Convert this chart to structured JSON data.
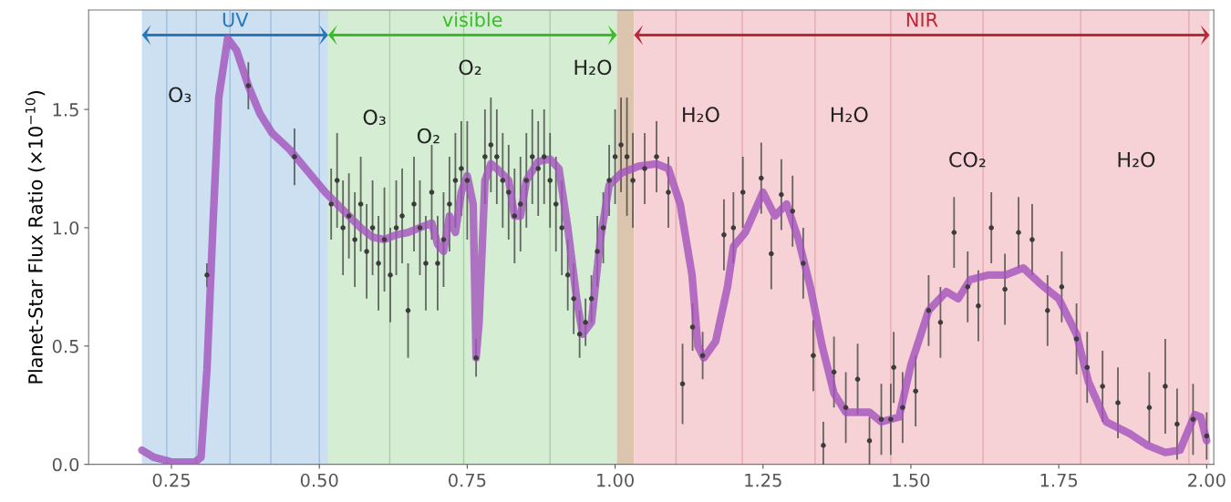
{
  "chart_data": {
    "type": "line",
    "ylabel": "Planet-Star Flux Ratio (×10$^{−10}$)",
    "xlim": [
      0.11,
      2.012
    ],
    "ylim": [
      0,
      1.92
    ],
    "xticks": [
      0.25,
      {
        "value": 0.5,
        "label": "0.50"
      },
      0.75,
      {
        "value": 1.0,
        "label": "1.00"
      },
      1.25,
      {
        "value": 1.5,
        "label": "1.50"
      },
      1.75,
      {
        "value": 2.0,
        "label": "2.00"
      }
    ],
    "yticks": [
      {
        "value": 0,
        "label": "0.0"
      },
      0.5,
      {
        "value": 1.0,
        "label": "1.0"
      },
      1.5
    ],
    "grid": false,
    "bands": [
      {
        "axis": "x",
        "from": 0.2,
        "to": 0.515,
        "label": "UV",
        "color": "#cadef0"
      },
      {
        "axis": "x",
        "from": 0.515,
        "to": 1.003,
        "label": "visible",
        "color": "#d3ecd0"
      },
      {
        "axis": "x",
        "from": 1.003,
        "to": 1.032,
        "label": null,
        "color": "#d9c2ab"
      },
      {
        "axis": "x",
        "from": 1.032,
        "to": 2.005,
        "label": "NIR",
        "color": "#f5cfd3"
      }
    ],
    "ref_lines": [
      {
        "axis": "x",
        "value": 0.242,
        "color": "#9fbcd8"
      },
      {
        "axis": "x",
        "value": 0.292,
        "color": "#9fbcd8"
      },
      {
        "axis": "x",
        "value": 0.349,
        "color": "#9fbcd8"
      },
      {
        "axis": "x",
        "value": 0.418,
        "color": "#9fbcd8"
      },
      {
        "axis": "x",
        "value": 0.5,
        "color": "#9fbcd8"
      },
      {
        "axis": "x",
        "value": 0.619,
        "color": "#a9cfa5"
      },
      {
        "axis": "x",
        "value": 0.744,
        "color": "#a9cfa5"
      },
      {
        "axis": "x",
        "value": 0.89,
        "color": "#a9cfa5"
      },
      {
        "axis": "x",
        "value": 1.103,
        "color": "#e9a9b0"
      },
      {
        "axis": "x",
        "value": 1.215,
        "color": "#e9a9b0"
      },
      {
        "axis": "x",
        "value": 1.338,
        "color": "#e9a9b0"
      },
      {
        "axis": "x",
        "value": 1.466,
        "color": "#e9a9b0"
      },
      {
        "axis": "x",
        "value": 1.622,
        "color": "#e9a9b0"
      },
      {
        "axis": "x",
        "value": 1.787,
        "color": "#e9a9b0"
      },
      {
        "axis": "x",
        "value": 1.97,
        "color": "#e9a9b0"
      }
    ],
    "annotations": [
      "O₃",
      "O₃",
      "O₂",
      "O₂",
      "H₂O",
      "H₂O",
      "H₂O",
      "CO₂",
      "H₂O"
    ],
    "series": [
      {
        "color": "#a352bd",
        "x": [
          0.2,
          0.22,
          0.25,
          0.29,
          0.3,
          0.31,
          0.32,
          0.33,
          0.345,
          0.36,
          0.38,
          0.4,
          0.42,
          0.45,
          0.48,
          0.51,
          0.53,
          0.55,
          0.57,
          0.59,
          0.61,
          0.63,
          0.65,
          0.67,
          0.69,
          0.7,
          0.71,
          0.72,
          0.73,
          0.74,
          0.75,
          0.76,
          0.765,
          0.77,
          0.78,
          0.79,
          0.8,
          0.82,
          0.83,
          0.84,
          0.85,
          0.87,
          0.89,
          0.905,
          0.92,
          0.935,
          0.945,
          0.96,
          0.975,
          0.99,
          1.01,
          1.04,
          1.07,
          1.09,
          1.11,
          1.13,
          1.14,
          1.15,
          1.17,
          1.19,
          1.2,
          1.22,
          1.25,
          1.27,
          1.29,
          1.31,
          1.33,
          1.35,
          1.37,
          1.39,
          1.43,
          1.45,
          1.48,
          1.5,
          1.53,
          1.56,
          1.58,
          1.6,
          1.63,
          1.66,
          1.69,
          1.72,
          1.75,
          1.78,
          1.8,
          1.83,
          1.87,
          1.9,
          1.93,
          1.955,
          1.97,
          1.98,
          1.99,
          2.0
        ],
        "values": [
          0.06,
          0.03,
          0.01,
          0.01,
          0.03,
          0.4,
          1.0,
          1.55,
          1.8,
          1.75,
          1.6,
          1.48,
          1.4,
          1.33,
          1.24,
          1.15,
          1.1,
          1.05,
          1.0,
          0.96,
          0.95,
          0.97,
          0.98,
          1.0,
          1.02,
          0.93,
          0.9,
          1.05,
          0.98,
          1.15,
          1.22,
          1.1,
          0.45,
          0.6,
          1.2,
          1.27,
          1.25,
          1.2,
          1.05,
          1.05,
          1.2,
          1.28,
          1.29,
          1.25,
          1.0,
          0.7,
          0.55,
          0.6,
          0.95,
          1.18,
          1.23,
          1.26,
          1.27,
          1.25,
          1.1,
          0.8,
          0.5,
          0.45,
          0.52,
          0.75,
          0.92,
          0.98,
          1.15,
          1.05,
          1.1,
          0.95,
          0.75,
          0.5,
          0.3,
          0.22,
          0.22,
          0.18,
          0.2,
          0.42,
          0.65,
          0.73,
          0.7,
          0.78,
          0.8,
          0.8,
          0.83,
          0.76,
          0.7,
          0.55,
          0.35,
          0.18,
          0.13,
          0.08,
          0.05,
          0.06,
          0.15,
          0.21,
          0.2,
          0.1
        ]
      },
      {
        "type": "scatter",
        "color": "#3b3b3b",
        "marker": "circle",
        "x": [
          0.31,
          0.38,
          0.458,
          0.52,
          0.53,
          0.54,
          0.55,
          0.56,
          0.57,
          0.58,
          0.59,
          0.6,
          0.61,
          0.62,
          0.63,
          0.64,
          0.65,
          0.66,
          0.67,
          0.68,
          0.69,
          0.7,
          0.71,
          0.72,
          0.73,
          0.74,
          0.75,
          0.765,
          0.78,
          0.79,
          0.8,
          0.81,
          0.82,
          0.83,
          0.84,
          0.85,
          0.86,
          0.87,
          0.88,
          0.89,
          0.9,
          0.91,
          0.92,
          0.93,
          0.94,
          0.95,
          0.96,
          0.97,
          0.98,
          0.99,
          1.0,
          1.01,
          1.02,
          1.03,
          1.05,
          1.07,
          1.09,
          1.114,
          1.131,
          1.148,
          1.184,
          1.2,
          1.216,
          1.247,
          1.264,
          1.281,
          1.3,
          1.318,
          1.335,
          1.352,
          1.37,
          1.39,
          1.41,
          1.43,
          1.45,
          1.466,
          1.471,
          1.486,
          1.508,
          1.53,
          1.55,
          1.573,
          1.596,
          1.614,
          1.636,
          1.659,
          1.682,
          1.705,
          1.731,
          1.755,
          1.78,
          1.798,
          1.824,
          1.85,
          1.903,
          1.93,
          1.95,
          1.977,
          2.0
        ],
        "values": [
          0.8,
          1.6,
          1.3,
          1.1,
          1.2,
          1.0,
          1.05,
          0.95,
          1.1,
          0.9,
          1.0,
          0.85,
          0.95,
          0.8,
          1.0,
          1.05,
          0.65,
          1.1,
          1.0,
          0.85,
          1.15,
          0.85,
          0.95,
          1.1,
          1.2,
          1.25,
          1.2,
          0.45,
          1.3,
          1.35,
          1.3,
          1.2,
          1.15,
          1.05,
          1.1,
          1.2,
          1.3,
          1.25,
          1.3,
          1.2,
          1.1,
          1.0,
          0.8,
          0.7,
          0.55,
          0.6,
          0.7,
          0.9,
          1.0,
          1.2,
          1.3,
          1.35,
          1.3,
          1.2,
          1.25,
          1.3,
          1.15,
          0.34,
          0.58,
          0.46,
          0.97,
          1.0,
          1.15,
          1.21,
          0.89,
          1.14,
          1.07,
          0.85,
          0.46,
          0.08,
          0.39,
          0.24,
          0.36,
          0.1,
          0.19,
          0.19,
          0.41,
          0.24,
          0.31,
          0.65,
          0.6,
          0.98,
          0.75,
          0.67,
          1.0,
          0.74,
          0.98,
          0.95,
          0.65,
          0.75,
          0.53,
          0.41,
          0.33,
          0.26,
          0.24,
          0.33,
          0.17,
          0.19,
          0.12
        ],
        "errors": [
          0.05,
          0.1,
          0.12,
          0.15,
          0.2,
          0.2,
          0.18,
          0.2,
          0.2,
          0.2,
          0.2,
          0.2,
          0.22,
          0.2,
          0.2,
          0.2,
          0.2,
          0.2,
          0.2,
          0.2,
          0.2,
          0.2,
          0.2,
          0.2,
          0.2,
          0.2,
          0.25,
          0.08,
          0.2,
          0.2,
          0.2,
          0.2,
          0.2,
          0.2,
          0.2,
          0.2,
          0.2,
          0.2,
          0.2,
          0.2,
          0.2,
          0.2,
          0.15,
          0.15,
          0.1,
          0.1,
          0.1,
          0.15,
          0.15,
          0.15,
          0.2,
          0.2,
          0.25,
          0.2,
          0.15,
          0.15,
          0.15,
          0.17,
          0.1,
          0.1,
          0.15,
          0.15,
          0.15,
          0.15,
          0.15,
          0.15,
          0.15,
          0.15,
          0.15,
          0.1,
          0.15,
          0.15,
          0.15,
          0.1,
          0.15,
          0.15,
          0.15,
          0.15,
          0.15,
          0.15,
          0.15,
          0.15,
          0.15,
          0.15,
          0.15,
          0.15,
          0.15,
          0.15,
          0.15,
          0.15,
          0.15,
          0.15,
          0.15,
          0.15,
          0.15,
          0.2,
          0.15,
          0.15,
          0.1
        ]
      }
    ]
  }
}
